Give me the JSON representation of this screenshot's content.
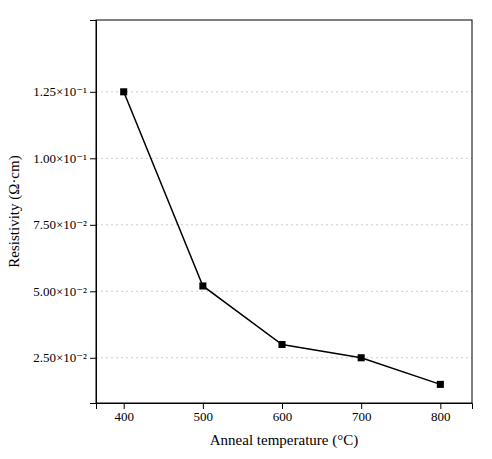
{
  "chart_data": {
    "type": "line",
    "x": [
      400,
      500,
      600,
      700,
      800
    ],
    "values": [
      0.125,
      0.052,
      0.03,
      0.025,
      0.015
    ],
    "xlabel": "Anneal temperature (°C)",
    "ylabel": "Resistivity (Ω·cm)",
    "xlim": [
      365,
      840
    ],
    "ylim": [
      0.008,
      0.152
    ],
    "xticks": [
      400,
      500,
      600,
      700,
      800
    ],
    "yticks": [
      {
        "value": 0.025,
        "label": "2.50×10⁻²"
      },
      {
        "value": 0.05,
        "label": "5.00×10⁻²"
      },
      {
        "value": 0.075,
        "label": "7.50×10⁻²"
      },
      {
        "value": 0.1,
        "label": "1.00×10⁻¹"
      },
      {
        "value": 0.125,
        "label": "1.25×10⁻¹"
      }
    ],
    "marker": "square",
    "color": "black",
    "grid": "y"
  }
}
